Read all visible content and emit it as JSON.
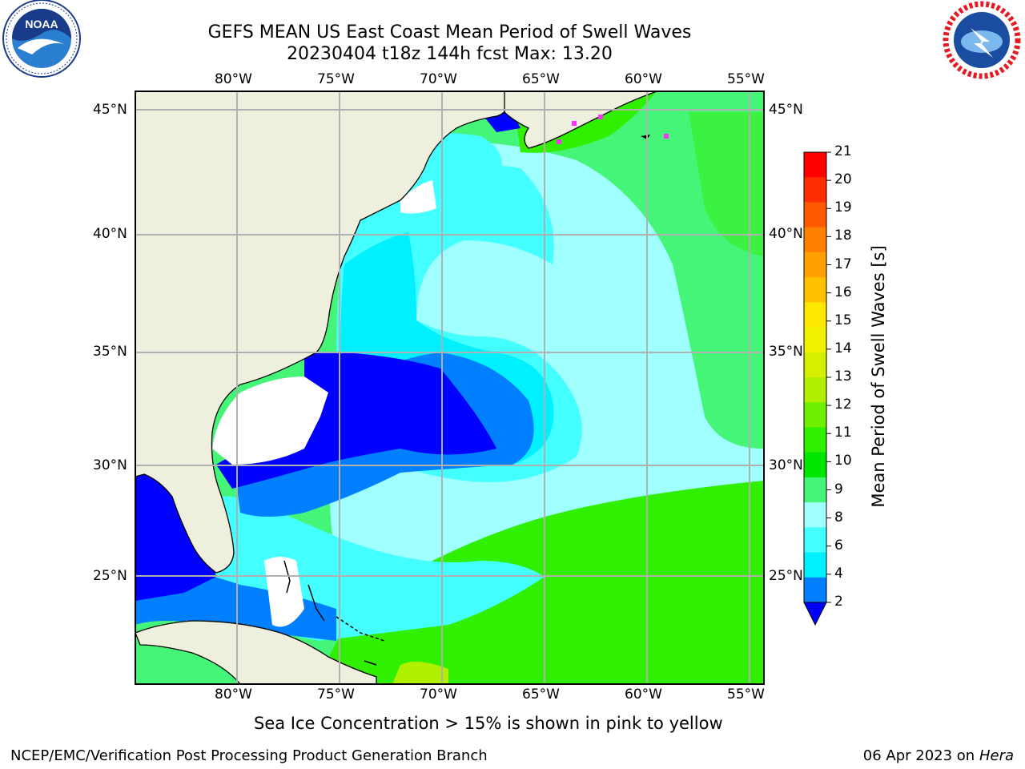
{
  "header": {
    "title_line1": "GEFS MEAN US East Coast Mean Period of Swell Waves",
    "title_line2": "20230404 t18z 144h fcst   Max: 13.20"
  },
  "logos": {
    "left": {
      "name": "noaa-logo",
      "text": "NOAA",
      "ring_text": "NATIONAL OCEANIC AND ATMOSPHERIC ADMINISTRATION · U.S. DEPARTMENT OF COMMERCE"
    },
    "right": {
      "name": "nws-logo",
      "ring_text": "NATIONAL WEATHER SERVICE"
    }
  },
  "map": {
    "lon_labels": [
      "80°W",
      "75°W",
      "70°W",
      "65°W",
      "60°W",
      "55°W"
    ],
    "lat_labels": [
      "45°N",
      "40°N",
      "35°N",
      "30°N",
      "25°N"
    ],
    "land_color": "#efefdd",
    "grid_color": "#b0b0b0"
  },
  "colorbar": {
    "label": "Mean Period of Swell Waves [s]",
    "ticks": [
      "21",
      "20",
      "19",
      "18",
      "17",
      "16",
      "15",
      "14",
      "13",
      "12",
      "11",
      "10",
      "9",
      "8",
      "6",
      "4",
      "2"
    ],
    "colors": [
      "#ff0000",
      "#ff2d00",
      "#ff5a00",
      "#ff8000",
      "#ffa000",
      "#ffc000",
      "#ffe800",
      "#f0f000",
      "#d4f000",
      "#b0f000",
      "#70f000",
      "#30f000",
      "#00e600",
      "#44f578",
      "#a0ffff",
      "#44ffff",
      "#00f0ff",
      "#0080ff"
    ],
    "extend_color": "#0000ff"
  },
  "note": "Sea Ice Concentration > 15% is shown in pink to yellow",
  "footer": {
    "left": "NCEP/EMC/Verification Post Processing Product Generation Branch",
    "date": "06 Apr 2023 on ",
    "machine": "Hera"
  }
}
